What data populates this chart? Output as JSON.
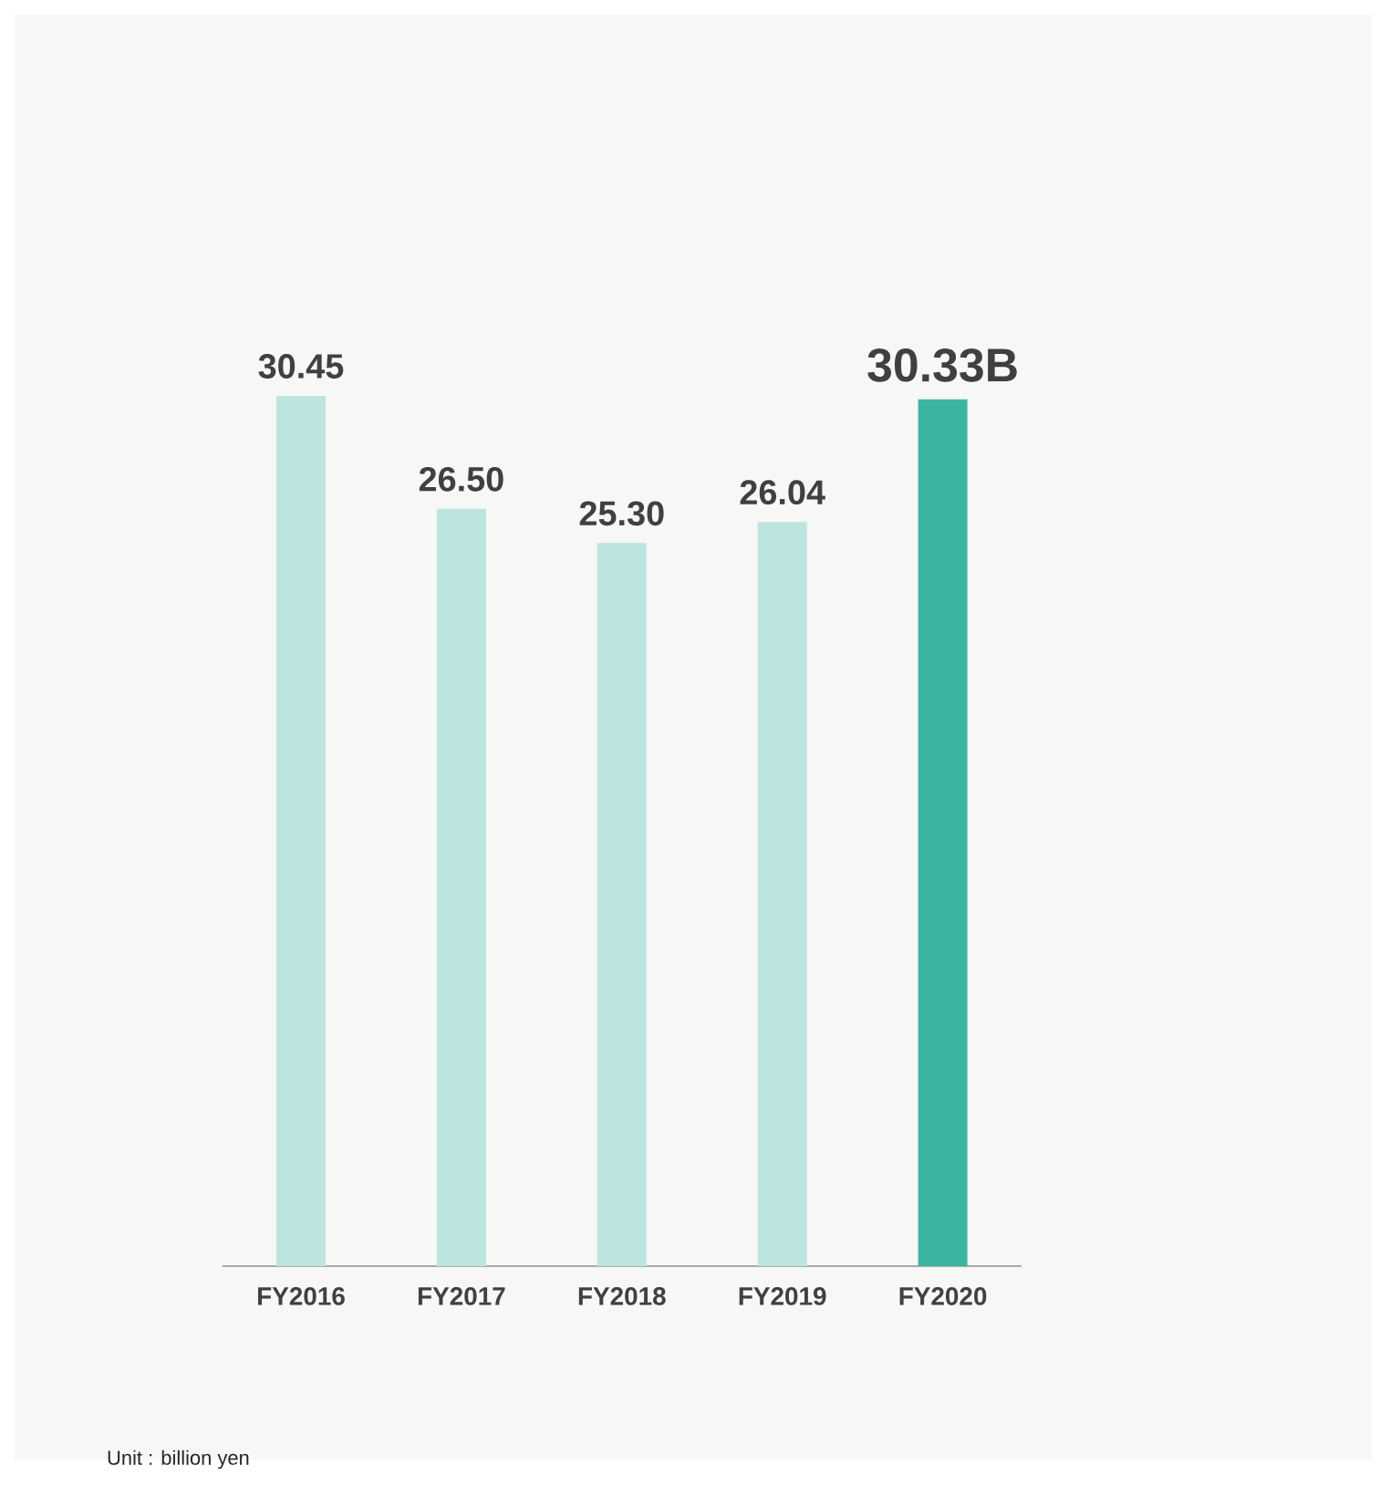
{
  "chart_data": {
    "type": "bar",
    "categories": [
      "FY2016",
      "FY2017",
      "FY2018",
      "FY2019",
      "FY2020"
    ],
    "values": [
      30.45,
      26.5,
      25.3,
      26.04,
      30.33
    ],
    "value_labels": [
      "30.45",
      "26.50",
      "25.30",
      "26.04",
      "30.33B"
    ],
    "colors": [
      "#bde5e0",
      "#bde5e0",
      "#bde5e0",
      "#bde5e0",
      "#3bb5a0"
    ],
    "annotations": [
      "Unit : billion yen"
    ]
  }
}
